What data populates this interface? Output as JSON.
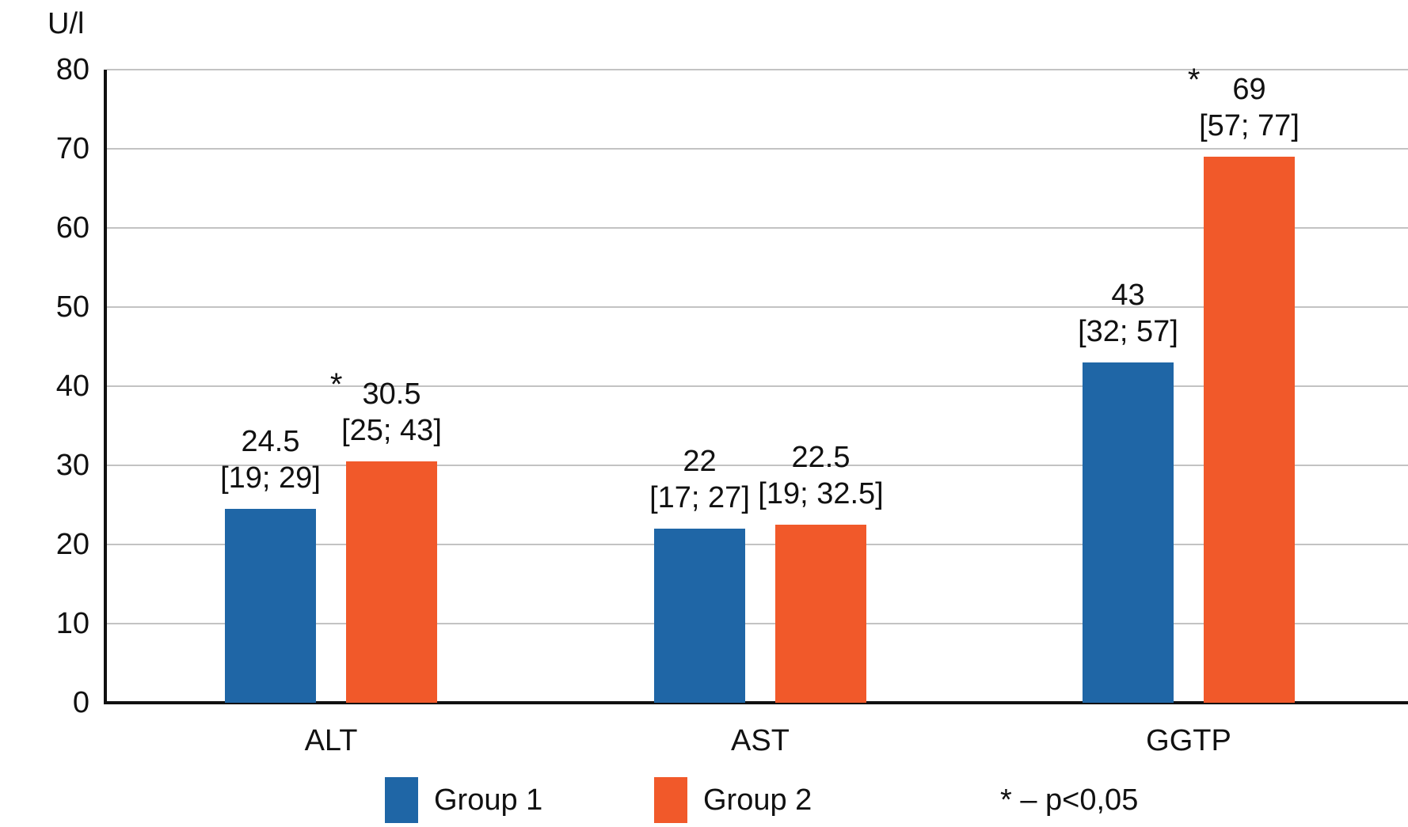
{
  "chart_data": {
    "type": "bar",
    "title": "",
    "unit_label": "U/l",
    "xlabel": "",
    "ylabel": "U/l",
    "categories": [
      "ALT",
      "AST",
      "GGTP"
    ],
    "series": [
      {
        "name": "Group 1",
        "color": "#1f66a6",
        "values": [
          24.5,
          22,
          43
        ],
        "value_labels": [
          "24.5",
          "22",
          "43"
        ],
        "iqr_labels": [
          "[19; 29]",
          "[17; 27]",
          "[32; 57]"
        ],
        "significant": [
          false,
          false,
          false
        ]
      },
      {
        "name": "Group 2",
        "color": "#f1592a",
        "values": [
          30.5,
          22.5,
          69
        ],
        "value_labels": [
          "30.5",
          "22.5",
          "69"
        ],
        "iqr_labels": [
          "[25; 43]",
          "[19; 32.5]",
          "[57; 77]"
        ],
        "significant": [
          true,
          false,
          true
        ]
      }
    ],
    "ylim": [
      0,
      80
    ],
    "ytick_step": 10,
    "ytick_labels": [
      "0",
      "10",
      "20",
      "30",
      "40",
      "50",
      "60",
      "70",
      "80"
    ],
    "grid": true,
    "legend_position": "bottom",
    "significance_marker": "*",
    "footnote": "* – p<0,05",
    "gridline_color": "#c3c3c3",
    "axis_color": "#111111"
  }
}
